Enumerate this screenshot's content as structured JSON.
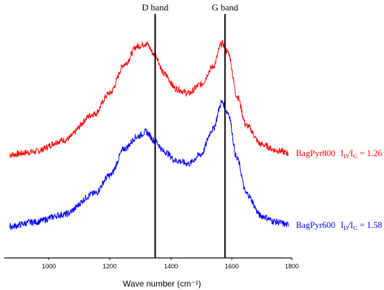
{
  "chart_data": {
    "type": "line",
    "xlabel": "Wave number (cm⁻¹)",
    "xlim": [
      860,
      1800
    ],
    "xticks": [
      "1000",
      "1200",
      "1400",
      "1600",
      "1800"
    ],
    "y_axis_shown": false,
    "grid": false,
    "reference_lines": [
      {
        "label": "D band",
        "x": 1350
      },
      {
        "label": "G band",
        "x": 1580
      }
    ],
    "series": [
      {
        "name": "BagPyr800",
        "color": "#ff0000",
        "ratio_label": "I",
        "ratio_sub_1": "D",
        "ratio_sep": "/I",
        "ratio_sub_2": "G",
        "ratio_value": " = 1.26",
        "points": [
          [
            870,
            0.0
          ],
          [
            950,
            0.02
          ],
          [
            1050,
            0.1
          ],
          [
            1150,
            0.28
          ],
          [
            1200,
            0.42
          ],
          [
            1250,
            0.62
          ],
          [
            1290,
            0.74
          ],
          [
            1320,
            0.76
          ],
          [
            1350,
            0.68
          ],
          [
            1380,
            0.55
          ],
          [
            1420,
            0.45
          ],
          [
            1460,
            0.42
          ],
          [
            1500,
            0.48
          ],
          [
            1540,
            0.6
          ],
          [
            1570,
            0.76
          ],
          [
            1590,
            0.7
          ],
          [
            1620,
            0.4
          ],
          [
            1650,
            0.2
          ],
          [
            1700,
            0.07
          ],
          [
            1750,
            0.03
          ],
          [
            1790,
            0.01
          ]
        ]
      },
      {
        "name": "BagPyr600",
        "color": "#0000ff",
        "ratio_label": "I",
        "ratio_sub_1": "D",
        "ratio_sep": "/I",
        "ratio_sub_2": "G",
        "ratio_value": " = 1.58",
        "points": [
          [
            870,
            0.0
          ],
          [
            950,
            0.03
          ],
          [
            1050,
            0.08
          ],
          [
            1150,
            0.22
          ],
          [
            1200,
            0.34
          ],
          [
            1250,
            0.52
          ],
          [
            1290,
            0.6
          ],
          [
            1320,
            0.63
          ],
          [
            1350,
            0.57
          ],
          [
            1380,
            0.5
          ],
          [
            1420,
            0.44
          ],
          [
            1460,
            0.42
          ],
          [
            1500,
            0.48
          ],
          [
            1540,
            0.65
          ],
          [
            1570,
            0.83
          ],
          [
            1590,
            0.76
          ],
          [
            1620,
            0.45
          ],
          [
            1650,
            0.22
          ],
          [
            1700,
            0.07
          ],
          [
            1750,
            0.03
          ],
          [
            1790,
            0.01
          ]
        ]
      }
    ]
  }
}
